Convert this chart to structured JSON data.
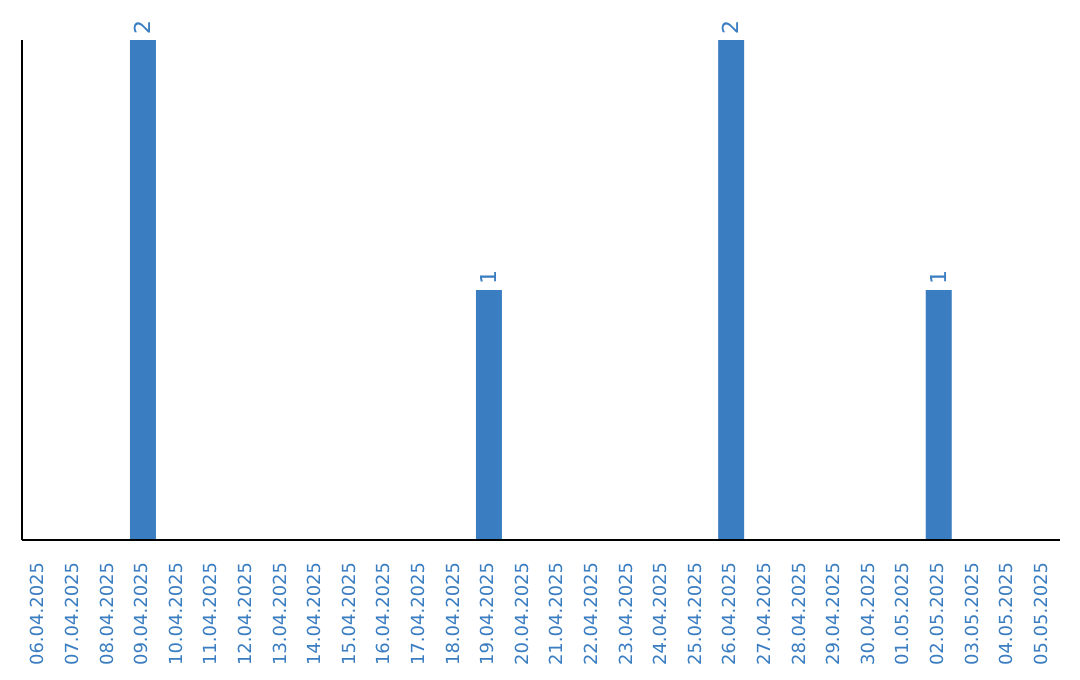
{
  "chart_data": {
    "type": "bar",
    "categories": [
      "06.04.2025",
      "07.04.2025",
      "08.04.2025",
      "09.04.2025",
      "10.04.2025",
      "11.04.2025",
      "12.04.2025",
      "13.04.2025",
      "14.04.2025",
      "15.04.2025",
      "16.04.2025",
      "17.04.2025",
      "18.04.2025",
      "19.04.2025",
      "20.04.2025",
      "21.04.2025",
      "22.04.2025",
      "23.04.2025",
      "24.04.2025",
      "25.04.2025",
      "26.04.2025",
      "27.04.2025",
      "28.04.2025",
      "29.04.2025",
      "30.04.2025",
      "01.05.2025",
      "02.05.2025",
      "03.05.2025",
      "04.05.2025",
      "05.05.2025"
    ],
    "values": [
      0,
      0,
      0,
      2,
      0,
      0,
      0,
      0,
      0,
      0,
      0,
      0,
      0,
      1,
      0,
      0,
      0,
      0,
      0,
      0,
      2,
      0,
      0,
      0,
      0,
      0,
      1,
      0,
      0,
      0
    ],
    "value_labels": [
      null,
      null,
      null,
      "2",
      null,
      null,
      null,
      null,
      null,
      null,
      null,
      null,
      null,
      "1",
      null,
      null,
      null,
      null,
      null,
      null,
      "2",
      null,
      null,
      null,
      null,
      null,
      "1",
      null,
      null,
      null
    ],
    "color": "#3a7dc1",
    "grid": false,
    "legend": false
  }
}
